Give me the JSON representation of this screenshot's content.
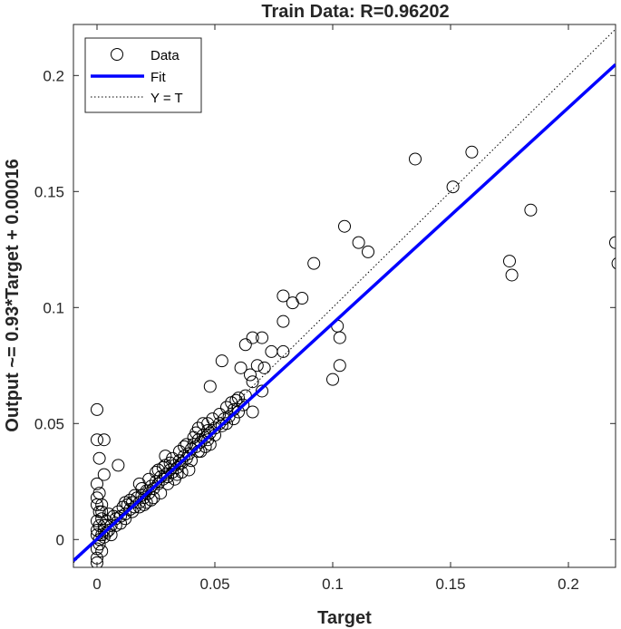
{
  "chart_data": {
    "type": "scatter",
    "title": "Train Data: R=0.96202",
    "xlabel": "Target",
    "ylabel": "Output ~= 0.93*Target + 0.00016",
    "xlim": [
      -0.01,
      0.22
    ],
    "ylim": [
      -0.012,
      0.222
    ],
    "xticks": [
      {
        "value": 0,
        "label": "0"
      },
      {
        "value": 0.05,
        "label": "0.05"
      },
      {
        "value": 0.1,
        "label": "0.1"
      },
      {
        "value": 0.15,
        "label": "0.15"
      },
      {
        "value": 0.2,
        "label": "0.2"
      }
    ],
    "yticks": [
      {
        "value": 0,
        "label": "0"
      },
      {
        "value": 0.05,
        "label": "0.05"
      },
      {
        "value": 0.1,
        "label": "0.1"
      },
      {
        "value": 0.15,
        "label": "0.15"
      },
      {
        "value": 0.2,
        "label": "0.2"
      }
    ],
    "grid": false,
    "legend_position": "top-left",
    "legend": [
      {
        "label": "Data",
        "style": "marker-circle"
      },
      {
        "label": "Fit",
        "style": "line-solid"
      },
      {
        "label": "Y = T",
        "style": "line-dotted"
      }
    ],
    "fit": {
      "slope": 0.93,
      "intercept": 0.00016,
      "color": "#0000ff"
    },
    "identity": {
      "color": "#000000"
    },
    "marker_color": "#000000",
    "series": [
      {
        "name": "Data",
        "points": [
          [
            0.135,
            0.164
          ],
          [
            0.159,
            0.167
          ],
          [
            0.151,
            0.152
          ],
          [
            0.184,
            0.142
          ],
          [
            0.105,
            0.135
          ],
          [
            0.111,
            0.128
          ],
          [
            0.115,
            0.124
          ],
          [
            0.175,
            0.12
          ],
          [
            0.176,
            0.114
          ],
          [
            0.22,
            0.128
          ],
          [
            0.221,
            0.119
          ],
          [
            0.092,
            0.119
          ],
          [
            0.087,
            0.104
          ],
          [
            0.079,
            0.105
          ],
          [
            0.083,
            0.102
          ],
          [
            0.079,
            0.094
          ],
          [
            0.102,
            0.092
          ],
          [
            0.103,
            0.087
          ],
          [
            0.066,
            0.087
          ],
          [
            0.063,
            0.084
          ],
          [
            0.07,
            0.087
          ],
          [
            0.074,
            0.081
          ],
          [
            0.068,
            0.075
          ],
          [
            0.103,
            0.075
          ],
          [
            0.1,
            0.069
          ],
          [
            0.079,
            0.081
          ],
          [
            0.053,
            0.077
          ],
          [
            0.061,
            0.074
          ],
          [
            0.065,
            0.071
          ],
          [
            0.071,
            0.074
          ],
          [
            0.066,
            0.068
          ],
          [
            0.063,
            0.062
          ],
          [
            0.07,
            0.064
          ],
          [
            0.048,
            0.066
          ],
          [
            0.059,
            0.06
          ],
          [
            0.062,
            0.058
          ],
          [
            0.066,
            0.055
          ],
          [
            0.0,
            0.056
          ],
          [
            0.0,
            0.043
          ],
          [
            0.003,
            0.043
          ],
          [
            0.001,
            0.035
          ],
          [
            0.009,
            0.032
          ],
          [
            0.003,
            0.028
          ],
          [
            0.0,
            0.024
          ],
          [
            0.001,
            0.02
          ],
          [
            0.0,
            0.015
          ],
          [
            0.002,
            0.012
          ],
          [
            0.0,
            0.008
          ],
          [
            0.0,
            0.004
          ],
          [
            0.001,
            0.0
          ],
          [
            0.0,
            -0.004
          ],
          [
            0.0,
            -0.008
          ],
          [
            0.0,
            -0.01
          ],
          [
            0.001,
            0.006
          ],
          [
            0.002,
            0.009
          ],
          [
            0.003,
            0.004
          ],
          [
            0.004,
            0.008
          ],
          [
            0.005,
            0.011
          ],
          [
            0.006,
            0.006
          ],
          [
            0.007,
            0.01
          ],
          [
            0.008,
            0.009
          ],
          [
            0.009,
            0.012
          ],
          [
            0.01,
            0.01
          ],
          [
            0.011,
            0.014
          ],
          [
            0.012,
            0.011
          ],
          [
            0.013,
            0.015
          ],
          [
            0.014,
            0.013
          ],
          [
            0.015,
            0.016
          ],
          [
            0.016,
            0.014
          ],
          [
            0.017,
            0.018
          ],
          [
            0.018,
            0.016
          ],
          [
            0.019,
            0.019
          ],
          [
            0.02,
            0.018
          ],
          [
            0.021,
            0.021
          ],
          [
            0.022,
            0.02
          ],
          [
            0.023,
            0.023
          ],
          [
            0.024,
            0.022
          ],
          [
            0.025,
            0.025
          ],
          [
            0.026,
            0.024
          ],
          [
            0.027,
            0.027
          ],
          [
            0.028,
            0.026
          ],
          [
            0.029,
            0.028
          ],
          [
            0.03,
            0.027
          ],
          [
            0.031,
            0.03
          ],
          [
            0.032,
            0.029
          ],
          [
            0.033,
            0.032
          ],
          [
            0.034,
            0.031
          ],
          [
            0.035,
            0.034
          ],
          [
            0.036,
            0.033
          ],
          [
            0.037,
            0.036
          ],
          [
            0.038,
            0.035
          ],
          [
            0.039,
            0.037
          ],
          [
            0.04,
            0.039
          ],
          [
            0.041,
            0.041
          ],
          [
            0.042,
            0.04
          ],
          [
            0.043,
            0.043
          ],
          [
            0.044,
            0.042
          ],
          [
            0.045,
            0.045
          ],
          [
            0.046,
            0.044
          ],
          [
            0.047,
            0.047
          ],
          [
            0.048,
            0.046
          ],
          [
            0.05,
            0.048
          ],
          [
            0.052,
            0.05
          ],
          [
            0.054,
            0.052
          ],
          [
            0.056,
            0.053
          ],
          [
            0.058,
            0.056
          ],
          [
            0.06,
            0.055
          ],
          [
            0.028,
            0.031
          ],
          [
            0.025,
            0.029
          ],
          [
            0.022,
            0.026
          ],
          [
            0.019,
            0.022
          ],
          [
            0.018,
            0.024
          ],
          [
            0.016,
            0.019
          ],
          [
            0.014,
            0.017
          ],
          [
            0.012,
            0.016
          ],
          [
            0.04,
            0.034
          ],
          [
            0.044,
            0.038
          ],
          [
            0.047,
            0.043
          ],
          [
            0.05,
            0.045
          ],
          [
            0.053,
            0.049
          ],
          [
            0.036,
            0.029
          ],
          [
            0.033,
            0.026
          ],
          [
            0.03,
            0.024
          ],
          [
            0.027,
            0.02
          ],
          [
            0.024,
            0.018
          ],
          [
            0.021,
            0.016
          ],
          [
            0.045,
            0.05
          ],
          [
            0.049,
            0.052
          ],
          [
            0.052,
            0.054
          ],
          [
            0.055,
            0.057
          ],
          [
            0.057,
            0.059
          ],
          [
            0.06,
            0.061
          ],
          [
            0.042,
            0.046
          ],
          [
            0.038,
            0.041
          ],
          [
            0.035,
            0.038
          ],
          [
            0.032,
            0.035
          ],
          [
            0.029,
            0.032
          ],
          [
            0.026,
            0.03
          ],
          [
            0.002,
            0.002
          ],
          [
            0.003,
            0.001
          ],
          [
            0.004,
            0.003
          ],
          [
            0.005,
            0.004
          ],
          [
            0.006,
            0.002
          ],
          [
            0.001,
            -0.002
          ],
          [
            0.002,
            -0.005
          ],
          [
            0.0,
            0.002
          ],
          [
            0.001,
            0.012
          ],
          [
            0.002,
            0.015
          ],
          [
            0.0,
            0.018
          ],
          [
            0.003,
            0.006
          ],
          [
            0.008,
            0.006
          ],
          [
            0.01,
            0.007
          ],
          [
            0.012,
            0.009
          ],
          [
            0.015,
            0.012
          ],
          [
            0.018,
            0.014
          ],
          [
            0.02,
            0.015
          ],
          [
            0.023,
            0.017
          ],
          [
            0.037,
            0.04
          ],
          [
            0.041,
            0.044
          ],
          [
            0.043,
            0.038
          ],
          [
            0.039,
            0.03
          ],
          [
            0.034,
            0.028
          ],
          [
            0.046,
            0.04
          ],
          [
            0.048,
            0.041
          ],
          [
            0.055,
            0.05
          ],
          [
            0.058,
            0.052
          ],
          [
            0.047,
            0.05
          ],
          [
            0.043,
            0.048
          ],
          [
            0.031,
            0.033
          ],
          [
            0.029,
            0.036
          ]
        ]
      }
    ]
  }
}
